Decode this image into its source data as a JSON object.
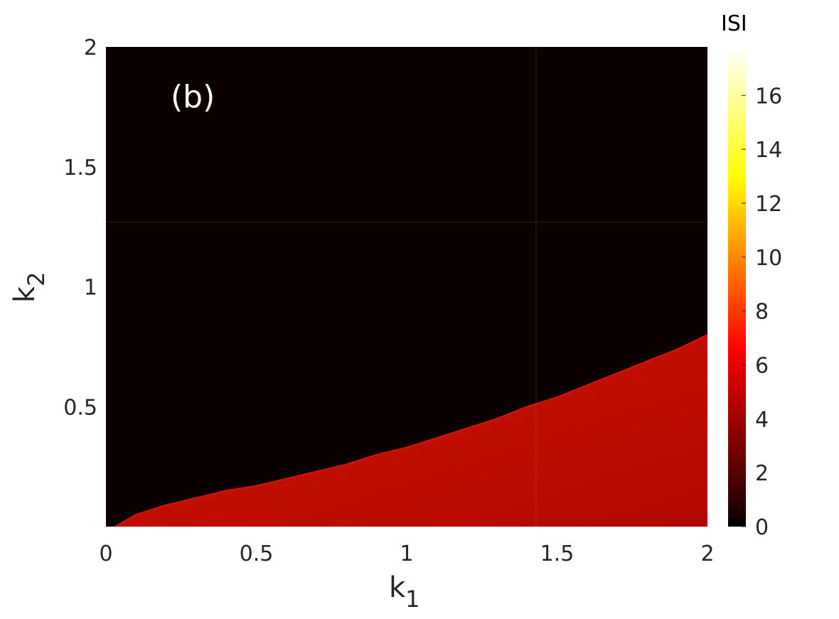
{
  "chart_data": {
    "type": "heatmap",
    "panel_label": "(b)",
    "xlabel_main": "k",
    "xlabel_sub": "1",
    "ylabel_main": "k",
    "ylabel_sub": "2",
    "xlim": [
      0,
      2
    ],
    "ylim": [
      0,
      2
    ],
    "x_ticks": [
      "0",
      "0.5",
      "1",
      "1.5",
      "2"
    ],
    "x_tick_values": [
      0,
      0.5,
      1,
      1.5,
      2
    ],
    "y_ticks": [
      "0.5",
      "1",
      "1.5",
      "2"
    ],
    "y_tick_values": [
      0.5,
      1,
      1.5,
      2
    ],
    "colorbar": {
      "title": "ISI",
      "range": [
        0,
        17.8
      ],
      "ticks": [
        "0",
        "2",
        "4",
        "6",
        "8",
        "10",
        "12",
        "14",
        "16"
      ],
      "tick_values": [
        0,
        2,
        4,
        6,
        8,
        10,
        12,
        14,
        16
      ]
    },
    "regions": [
      {
        "name": "quiescent (ISI = 0)",
        "isi": 0,
        "location": "above boundary curve",
        "color": "#0a0000"
      },
      {
        "name": "spiking (ISI ≈ 3–4)",
        "isi_range": [
          3,
          4
        ],
        "location": "below boundary curve",
        "color_top": "#cf1300",
        "color_bottom": "#b20800"
      }
    ],
    "boundary_curve": {
      "k1": [
        0.03,
        0.1,
        0.2,
        0.3,
        0.4,
        0.5,
        0.6,
        0.7,
        0.8,
        0.9,
        1.0,
        1.1,
        1.2,
        1.3,
        1.4,
        1.5,
        1.6,
        1.7,
        1.8,
        1.9,
        2.0
      ],
      "k2": [
        0.0,
        0.05,
        0.09,
        0.12,
        0.15,
        0.17,
        0.2,
        0.23,
        0.26,
        0.3,
        0.33,
        0.37,
        0.41,
        0.45,
        0.5,
        0.54,
        0.59,
        0.64,
        0.69,
        0.74,
        0.8
      ]
    },
    "grid": "off",
    "legend": "none"
  }
}
